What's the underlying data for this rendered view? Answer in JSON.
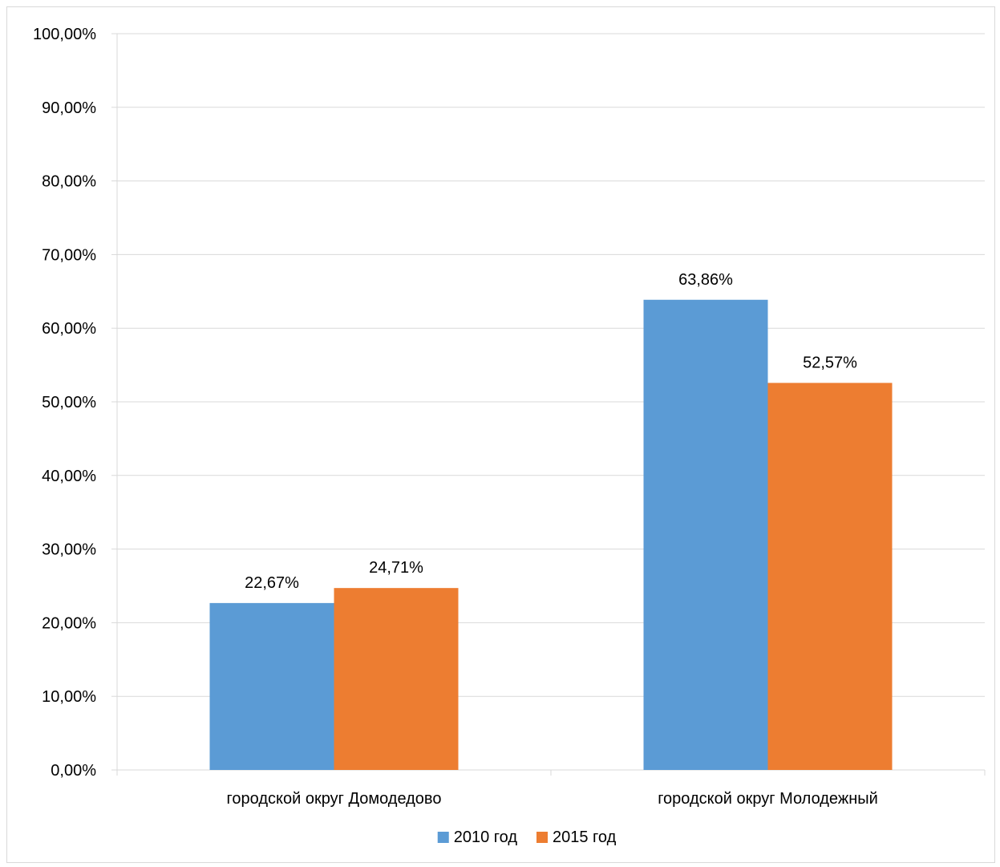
{
  "chart_data": {
    "type": "bar",
    "title": "",
    "xlabel": "",
    "ylabel": "",
    "categories": [
      "городской округ Домодедово",
      "городской округ Молодежный"
    ],
    "series": [
      {
        "name": "2010 год",
        "color": "#5B9BD5",
        "values": [
          22.67,
          63.86
        ],
        "labels": [
          "22,67%",
          "63,86%"
        ]
      },
      {
        "name": "2015 год",
        "color": "#ED7D31",
        "values": [
          24.71,
          52.57
        ],
        "labels": [
          "24,71%",
          "52,57%"
        ]
      }
    ],
    "ylim": [
      0,
      100
    ],
    "yticks": [
      0,
      10,
      20,
      30,
      40,
      50,
      60,
      70,
      80,
      90,
      100
    ],
    "ytick_labels": [
      "0,00%",
      "10,00%",
      "20,00%",
      "30,00%",
      "40,00%",
      "50,00%",
      "60,00%",
      "70,00%",
      "80,00%",
      "90,00%",
      "100,00%"
    ],
    "grid": true,
    "gridline_color": "#d9d9d9",
    "legend_position": "bottom"
  }
}
